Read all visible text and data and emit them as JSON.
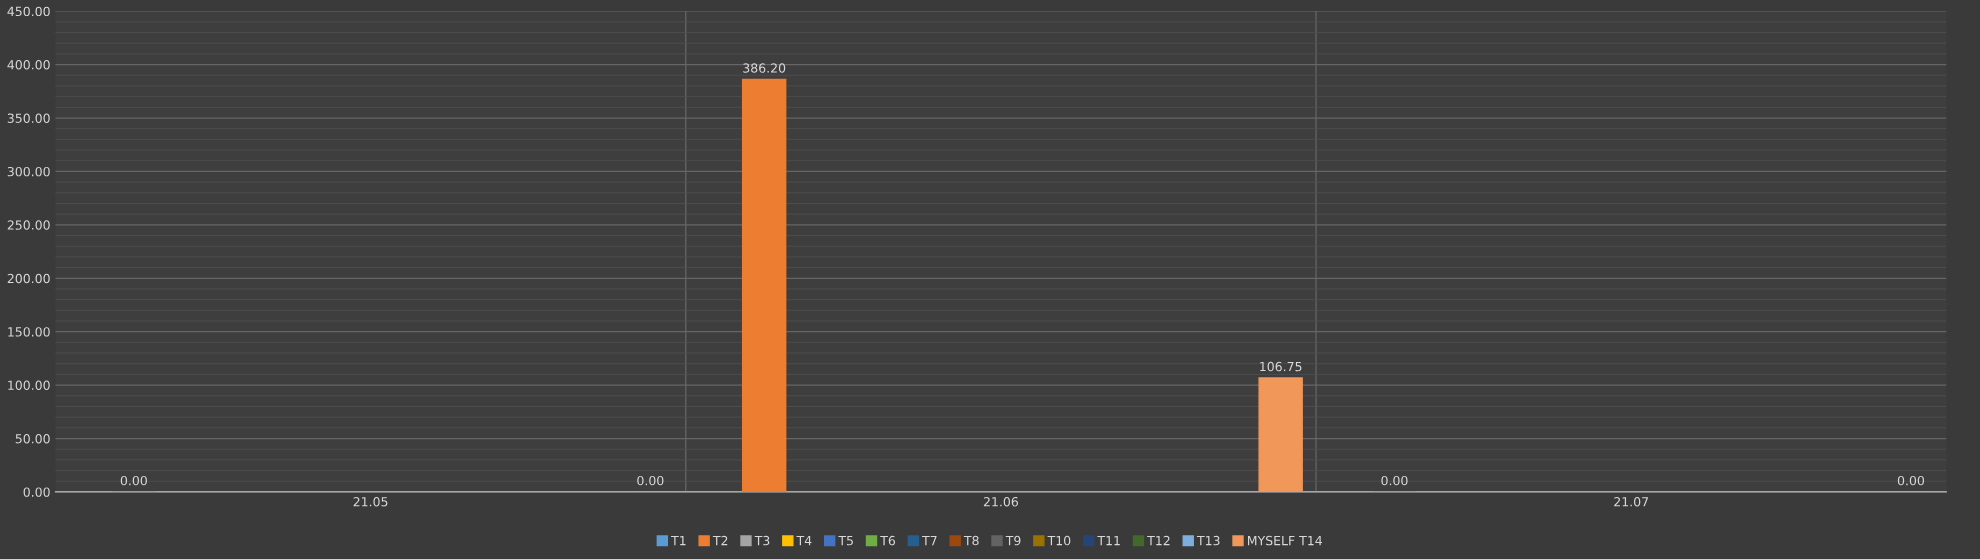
{
  "chart_data": {
    "type": "bar",
    "categories": [
      "21.05",
      "21.06",
      "21.07"
    ],
    "series": [
      {
        "name": "T1",
        "color": "#5b9bd5",
        "values": [
          null,
          null,
          null
        ]
      },
      {
        "name": "T2",
        "color": "#ed7d31",
        "values": [
          0,
          386.2,
          0
        ],
        "value_labels": [
          "0.00",
          "386.20",
          "0.00"
        ]
      },
      {
        "name": "T3",
        "color": "#a5a5a5",
        "values": [
          null,
          null,
          null
        ]
      },
      {
        "name": "T4",
        "color": "#ffc000",
        "values": [
          null,
          null,
          null
        ]
      },
      {
        "name": "T5",
        "color": "#4472c4",
        "values": [
          null,
          null,
          null
        ]
      },
      {
        "name": "T6",
        "color": "#70ad47",
        "values": [
          null,
          null,
          null
        ]
      },
      {
        "name": "T7",
        "color": "#255e91",
        "values": [
          null,
          null,
          null
        ]
      },
      {
        "name": "T8",
        "color": "#9e480e",
        "values": [
          null,
          null,
          null
        ]
      },
      {
        "name": "T9",
        "color": "#636363",
        "values": [
          null,
          null,
          null
        ]
      },
      {
        "name": "T10",
        "color": "#997300",
        "values": [
          null,
          null,
          null
        ]
      },
      {
        "name": "T11",
        "color": "#264478",
        "values": [
          null,
          null,
          null
        ]
      },
      {
        "name": "T12",
        "color": "#43682b",
        "values": [
          null,
          null,
          null
        ]
      },
      {
        "name": "T13",
        "color": "#7cafdd",
        "values": [
          null,
          null,
          null
        ]
      },
      {
        "name": "MYSELF T14",
        "color": "#f1975a",
        "values": [
          0,
          106.75,
          0
        ],
        "value_labels": [
          "0.00",
          "106.75",
          "0.00"
        ]
      }
    ],
    "ylim": [
      0,
      450
    ],
    "yticks": [
      {
        "value": 0,
        "label": "0.00"
      },
      {
        "value": 50,
        "label": "50.00"
      },
      {
        "value": 100,
        "label": "100.00"
      },
      {
        "value": 150,
        "label": "150.00"
      },
      {
        "value": 200,
        "label": "200.00"
      },
      {
        "value": 250,
        "label": "250.00"
      },
      {
        "value": 300,
        "label": "300.00"
      },
      {
        "value": 350,
        "label": "350.00"
      },
      {
        "value": 400,
        "label": "400.00"
      },
      {
        "value": 450,
        "label": "450.00"
      }
    ],
    "grid": true,
    "legend": "bottom"
  }
}
